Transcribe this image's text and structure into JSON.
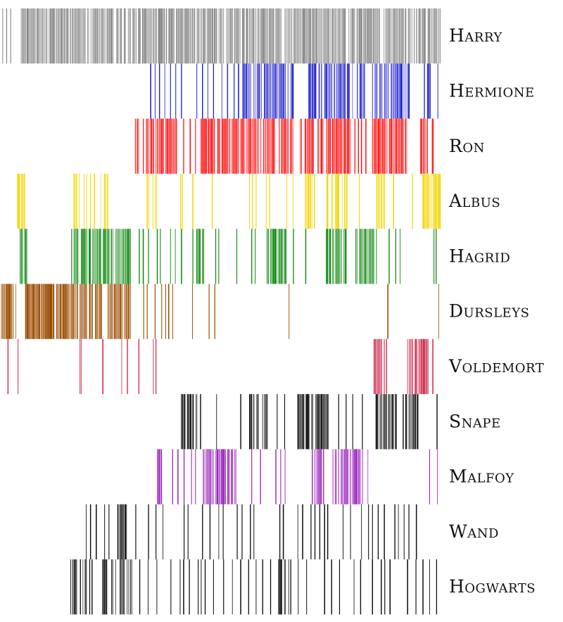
{
  "chart_data": {
    "type": "barcode",
    "x_domain": [
      0,
      100
    ],
    "series": [
      {
        "name": "Harry",
        "color": "#888888",
        "segments": [
          [
            4.5,
            100,
            0.9
          ]
        ],
        "occurrences": [
          0.3,
          1.2,
          2.1
        ]
      },
      {
        "name": "Hermione",
        "color": "#2222cc",
        "segments": [
          [
            55,
            66.5,
            0.75
          ],
          [
            70,
            83,
            0.7
          ],
          [
            84.5,
            93,
            0.75
          ],
          [
            96,
            100,
            0.4
          ]
        ],
        "occurrences": [
          34,
          35,
          36,
          37.2,
          38.5,
          39.7,
          41,
          44.5,
          45.8,
          47,
          48.3,
          50.2,
          51.5,
          53,
          54
        ]
      },
      {
        "name": "Ron",
        "color": "#ff1111",
        "segments": [
          [
            30.5,
            40,
            0.8
          ],
          [
            45.5,
            54,
            0.8
          ],
          [
            54.5,
            66.5,
            0.75
          ],
          [
            68,
            79.5,
            0.8
          ],
          [
            84.5,
            92.5,
            0.85
          ],
          [
            95.5,
            100,
            0.5
          ]
        ],
        "occurrences": [
          41.5,
          43,
          44.2,
          80.5,
          81.3,
          82,
          83
        ]
      },
      {
        "name": "Albus",
        "color": "#f2d600",
        "segments": [
          [
            3.5,
            6,
            0.85
          ],
          [
            16.5,
            25,
            0.45
          ],
          [
            69,
            79,
            0.5
          ],
          [
            85.5,
            87.5,
            0.9
          ],
          [
            96,
            100,
            0.9
          ]
        ],
        "occurrences": [
          33.2,
          33.6,
          34.5,
          35.2,
          40.8,
          41.2,
          43.6,
          48,
          56.5,
          57.2,
          58,
          60.3,
          61.1,
          65,
          66.4,
          81.5,
          89.3,
          93.6
        ]
      },
      {
        "name": "Hagrid",
        "color": "#118811",
        "segments": [
          [
            4.3,
            5.8,
            0.85
          ],
          [
            16,
            29.5,
            0.85
          ],
          [
            44.5,
            46.5,
            0.8
          ],
          [
            60.5,
            65,
            0.85
          ],
          [
            74,
            78.5,
            0.85
          ],
          [
            80.5,
            85.5,
            0.8
          ]
        ],
        "occurrences": [
          31.4,
          32.3,
          33.5,
          35.5,
          36.2,
          38.5,
          39.6,
          41,
          43.6,
          48.8,
          49.5,
          53.6,
          57,
          57.8,
          66.5,
          69.3,
          88.3,
          89.8,
          90.8,
          98.5,
          99
        ]
      },
      {
        "name": "Dursleys",
        "color": "#9a4d00",
        "segments": [
          [
            0,
            3.5,
            0.95
          ],
          [
            5.5,
            6.5,
            0.95
          ],
          [
            6.5,
            23,
            0.92
          ],
          [
            24,
            29.5,
            0.92
          ],
          [
            99.6,
            100,
            0.9
          ]
        ],
        "occurrences": [
          32.4,
          33.2,
          35,
          36.5,
          37.4,
          38.1,
          39,
          43.5,
          47.3,
          48.6,
          65.5,
          88
        ]
      },
      {
        "name": "Voldemort",
        "color": "#cc2244",
        "segments": [
          [
            84.5,
            88,
            0.55
          ],
          [
            92.5,
            98.5,
            0.65
          ]
        ],
        "occurrences": [
          1.5,
          3.8,
          17.9,
          18.2,
          23.1,
          27.4,
          28.7,
          31.3,
          34.6,
          35.2
        ]
      },
      {
        "name": "Snape",
        "color": "#111111",
        "segments": [
          [
            41,
            45.5,
            0.8
          ],
          [
            56.5,
            60.5,
            0.75
          ],
          [
            67.5,
            74.5,
            0.85
          ],
          [
            85,
            90,
            0.75
          ],
          [
            91.5,
            95,
            0.8
          ]
        ],
        "occurrences": [
          49,
          54.5,
          62.8,
          64.5,
          76.8,
          78.5,
          80,
          82.2,
          99.2
        ]
      },
      {
        "name": "Malfoy",
        "color": "#9922bb",
        "segments": [
          [
            35.5,
            36.5,
            0.9
          ],
          [
            46,
            53.5,
            0.75
          ],
          [
            70.5,
            73.5,
            0.75
          ],
          [
            75.5,
            83.5,
            0.7
          ]
        ],
        "occurrences": [
          39,
          40.2,
          41.6,
          43.3,
          44.2,
          57,
          59,
          62.5,
          63.6,
          64.6,
          97.5,
          99.3
        ]
      },
      {
        "name": "Wand",
        "color": "#111111",
        "segments": [
          [
            26.5,
            28.5,
            0.95
          ]
        ],
        "occurrences": [
          19.3,
          20.3,
          21.6,
          23.5,
          24.5,
          30.6,
          33.5,
          35.2,
          36.8,
          41.6,
          42.5,
          45.8,
          47.5,
          49.5,
          50.5,
          53.7,
          54.8,
          56.7,
          57.5,
          63.4,
          64.2,
          67.5,
          68.6,
          70.5,
          71.4,
          72.5,
          73.6,
          74.3,
          77.8,
          79.5,
          82,
          83.6,
          84.5,
          85.8,
          87.2,
          89.6,
          90.4,
          91.7,
          92.8,
          94.5
        ]
      },
      {
        "name": "Hogwarts",
        "color": "#111111",
        "segments": [
          [
            15.8,
            30,
            0.55
          ],
          [
            62.8,
            66,
            0.6
          ]
        ],
        "occurrences": [
          31.5,
          33.4,
          35.4,
          38.6,
          40.7,
          41.5,
          42.8,
          44.8,
          45.5,
          46.4,
          48.3,
          50.6,
          52.6,
          54.5,
          56.3,
          58,
          59.5,
          61.3,
          67.6,
          69.5,
          73.6,
          75.2,
          77,
          80.3,
          81.8,
          84.5,
          86.5,
          87.3,
          88.5,
          92.5,
          94.4,
          96,
          97.5,
          99.1
        ]
      }
    ]
  }
}
